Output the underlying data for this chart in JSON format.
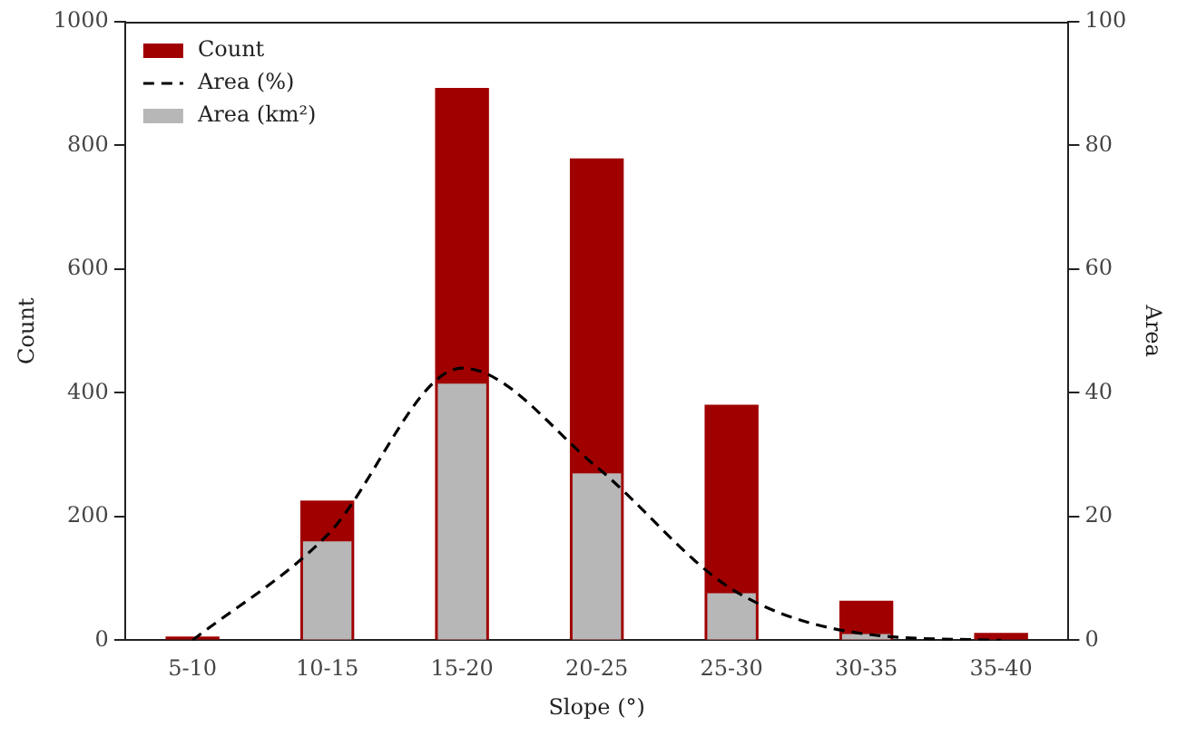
{
  "chart_data": {
    "type": "bar",
    "categories": [
      "5-10",
      "10-15",
      "15-20",
      "20-25",
      "25-30",
      "30-35",
      "35-40"
    ],
    "xlabel": "Slope (°)",
    "ylabel": "Count",
    "y2label": "Area",
    "series": [
      {
        "name": "Count",
        "color": "#a00000",
        "values": [
          6,
          226,
          893,
          779,
          381,
          64,
          12
        ]
      },
      {
        "name": "Area (%)",
        "type": "line",
        "axis": "y2",
        "color": "#000000",
        "line_style": "dashed",
        "marker": "none",
        "values": [
          0,
          17,
          44,
          28,
          8.3,
          1,
          0
        ]
      },
      {
        "name": "Area (km²)",
        "axis": "y2",
        "color": "#b7b7b7",
        "values": [
          0,
          16,
          41.5,
          27,
          7.6,
          1,
          0
        ]
      }
    ],
    "ylim": [
      0,
      1000
    ],
    "yticks": [
      0,
      200,
      400,
      600,
      800,
      1000
    ],
    "y2lim": [
      0,
      100
    ],
    "y2ticks": [
      0,
      20,
      40,
      60,
      80,
      100
    ],
    "grid": false,
    "legend": "top left"
  }
}
